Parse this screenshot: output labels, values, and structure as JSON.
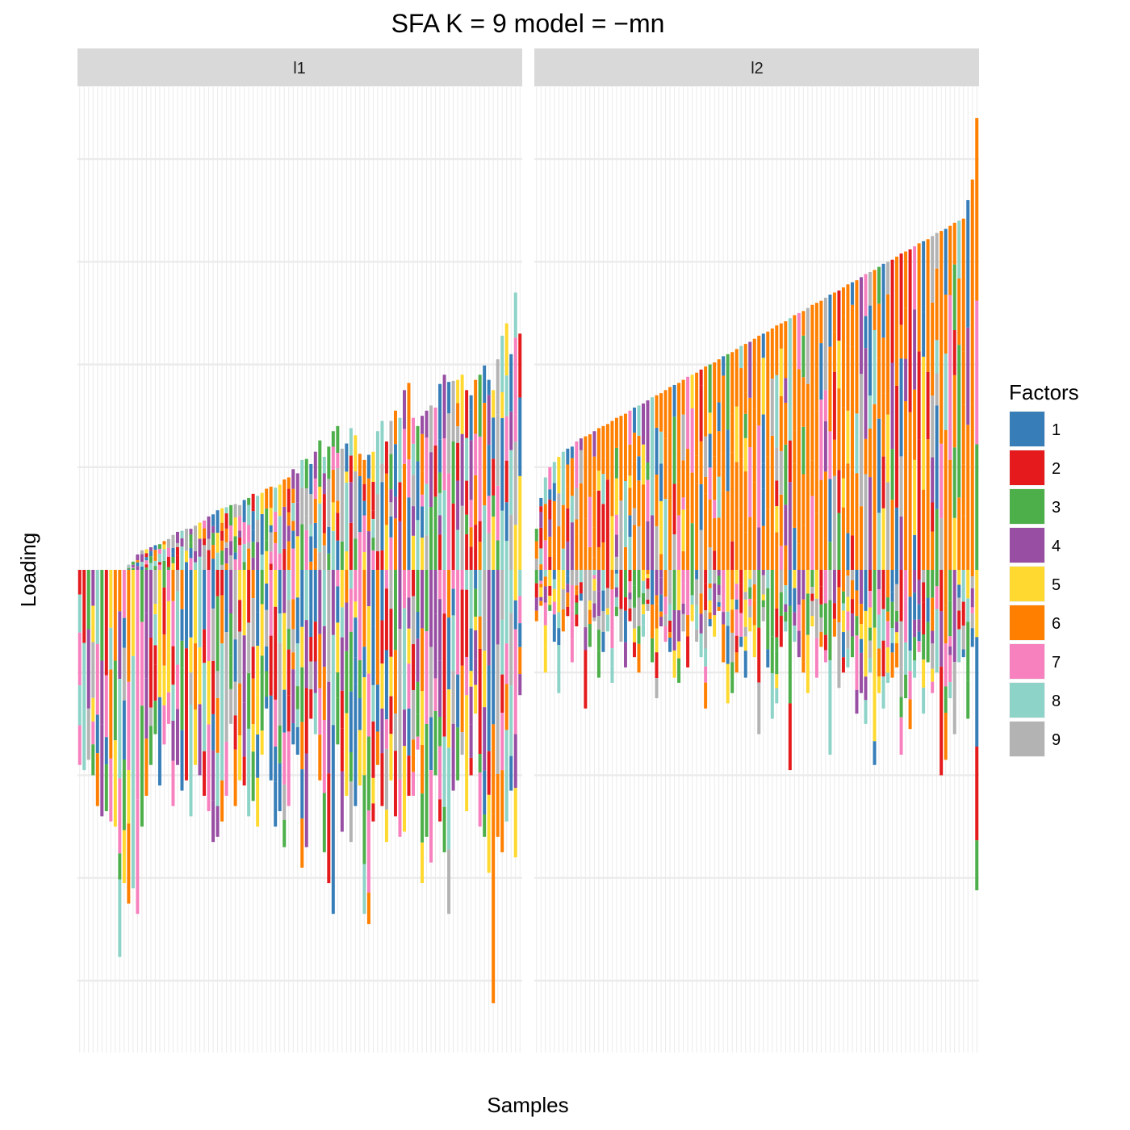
{
  "chart_data": {
    "type": "bar",
    "subtype": "stacked-diverging",
    "title": "SFA K = 9 model =  −mn",
    "xlabel": "Samples",
    "ylabel": "Loading",
    "ylim": [
      -4.7,
      4.7
    ],
    "grid": true,
    "y_gridlines": [
      -4,
      -3,
      -2,
      -1,
      1,
      2,
      3,
      4
    ],
    "tick_labels_shown": false,
    "legend": {
      "title": "Factors",
      "position": "right",
      "entries": [
        {
          "label": "1",
          "color": "#377EB8"
        },
        {
          "label": "2",
          "color": "#E41A1C"
        },
        {
          "label": "3",
          "color": "#4DAF4A"
        },
        {
          "label": "4",
          "color": "#984EA3"
        },
        {
          "label": "5",
          "color": "#FFD92F"
        },
        {
          "label": "6",
          "color": "#FF7F00"
        },
        {
          "label": "7",
          "color": "#F781BF"
        },
        {
          "label": "8",
          "color": "#8DD3C7"
        },
        {
          "label": "9",
          "color": "#B3B3B3"
        }
      ]
    },
    "panels": [
      {
        "name": "l1",
        "n_samples": 100,
        "positive_totals": [
          0.0,
          0.0,
          0.0,
          0.0,
          0.0,
          0.0,
          0.0,
          0.0,
          0.0,
          0.0,
          0.0,
          0.05,
          0.08,
          0.15,
          0.19,
          0.2,
          0.22,
          0.24,
          0.25,
          0.28,
          0.3,
          0.34,
          0.37,
          0.38,
          0.4,
          0.4,
          0.43,
          0.46,
          0.48,
          0.52,
          0.54,
          0.58,
          0.6,
          0.61,
          0.63,
          0.64,
          0.63,
          0.68,
          0.7,
          0.74,
          0.72,
          0.75,
          0.79,
          0.81,
          0.8,
          0.83,
          0.88,
          0.9,
          0.98,
          0.94,
          1.07,
          1.08,
          1.03,
          1.15,
          1.26,
          1.1,
          1.2,
          1.35,
          1.4,
          1.18,
          1.23,
          1.38,
          1.31,
          1.13,
          1.07,
          1.12,
          1.15,
          1.35,
          1.45,
          1.25,
          1.45,
          1.55,
          1.48,
          1.75,
          1.82,
          1.48,
          1.4,
          1.5,
          1.55,
          1.6,
          1.58,
          1.81,
          1.9,
          1.83,
          1.84,
          1.85,
          1.9,
          1.75,
          1.7,
          1.85,
          1.9,
          1.99,
          1.85,
          1.75,
          2.05,
          2.28,
          2.4,
          2.1,
          2.7,
          2.3
        ],
        "negative_totals": [
          -1.9,
          -1.95,
          -1.85,
          -2.0,
          -2.3,
          -2.4,
          -2.35,
          -2.45,
          -2.5,
          -3.77,
          -3.05,
          -3.25,
          -3.1,
          -3.35,
          -2.5,
          -2.2,
          -1.9,
          -1.6,
          -2.1,
          -1.7,
          -1.5,
          -2.3,
          -1.9,
          -2.15,
          -2.05,
          -2.4,
          -1.9,
          -2.0,
          -2.2,
          -2.35,
          -2.65,
          -2.6,
          -2.45,
          -2.2,
          -1.5,
          -2.3,
          -2.05,
          -2.1,
          -2.4,
          -2.25,
          -2.5,
          -1.8,
          -1.35,
          -2.05,
          -2.5,
          -2.35,
          -2.7,
          -2.3,
          -1.7,
          -1.8,
          -2.9,
          -2.7,
          -1.45,
          -1.6,
          -2.05,
          -2.75,
          -3.05,
          -3.35,
          -1.7,
          -2.55,
          -2.2,
          -2.65,
          -2.3,
          -2.1,
          -3.35,
          -3.45,
          -2.45,
          -1.9,
          -2.3,
          -2.65,
          -2.05,
          -2.4,
          -2.6,
          -2.55,
          -2.2,
          -2.2,
          -1.75,
          -3.05,
          -2.6,
          -2.85,
          -2.0,
          -2.45,
          -2.75,
          -3.35,
          -2.15,
          -2.05,
          -1.8,
          -2.35,
          -2.0,
          -1.4,
          -2.5,
          -2.6,
          -2.95,
          -4.22,
          -2.6,
          -2.75,
          -2.45,
          -2.15,
          -2.8,
          -1.22
        ]
      },
      {
        "name": "l2",
        "n_samples": 100,
        "positive_totals": [
          0.4,
          0.7,
          0.9,
          1.0,
          1.05,
          1.1,
          1.15,
          1.18,
          1.2,
          1.25,
          1.28,
          1.3,
          1.32,
          1.35,
          1.38,
          1.4,
          1.42,
          1.45,
          1.48,
          1.5,
          1.52,
          1.55,
          1.58,
          1.6,
          1.62,
          1.65,
          1.68,
          1.7,
          1.72,
          1.75,
          1.78,
          1.8,
          1.82,
          1.85,
          1.88,
          1.9,
          1.92,
          1.95,
          1.98,
          2.0,
          2.02,
          2.05,
          2.08,
          2.1,
          2.12,
          2.15,
          2.18,
          2.2,
          2.22,
          2.25,
          2.28,
          2.3,
          2.32,
          2.35,
          2.38,
          2.4,
          2.42,
          2.45,
          2.48,
          2.5,
          2.52,
          2.55,
          2.58,
          2.6,
          2.62,
          2.65,
          2.68,
          2.7,
          2.72,
          2.75,
          2.78,
          2.8,
          2.82,
          2.85,
          2.88,
          2.9,
          2.92,
          2.95,
          2.98,
          3.0,
          3.02,
          3.05,
          3.08,
          3.1,
          3.12,
          3.15,
          3.18,
          3.2,
          3.22,
          3.25,
          3.28,
          3.3,
          3.32,
          3.35,
          3.38,
          3.4,
          3.42,
          3.6,
          3.8,
          4.4
        ],
        "negative_totals": [
          -0.5,
          -0.35,
          -1.0,
          -0.4,
          -0.7,
          -1.2,
          -0.6,
          -0.45,
          -0.9,
          -0.55,
          -0.3,
          -1.35,
          -0.75,
          -0.5,
          -1.05,
          -0.8,
          -0.6,
          -1.1,
          -0.45,
          -0.7,
          -0.95,
          -0.5,
          -0.85,
          -1.0,
          -0.65,
          -0.4,
          -0.9,
          -1.25,
          -0.55,
          -0.7,
          -0.8,
          -1.05,
          -1.1,
          -0.6,
          -0.95,
          -0.5,
          -0.7,
          -0.85,
          -1.35,
          -0.55,
          -0.65,
          -0.4,
          -0.9,
          -1.3,
          -1.2,
          -1.0,
          -0.75,
          -1.05,
          -0.6,
          -0.85,
          -1.6,
          -0.5,
          -0.95,
          -1.45,
          -1.3,
          -0.75,
          -0.6,
          -1.95,
          -0.7,
          -0.85,
          -1.0,
          -1.2,
          -0.55,
          -1.05,
          -0.75,
          -0.9,
          -1.8,
          -0.65,
          -1.15,
          -1.0,
          -0.95,
          -0.85,
          -1.4,
          -1.2,
          -1.5,
          -1.0,
          -1.9,
          -1.2,
          -1.35,
          -1.1,
          -1.05,
          -0.95,
          -1.8,
          -1.25,
          -1.55,
          -1.05,
          -0.8,
          -1.4,
          -0.9,
          -1.2,
          -1.0,
          -2.0,
          -1.85,
          -1.25,
          -1.6,
          -0.9,
          -0.85,
          -1.45,
          -0.75,
          -3.12
        ]
      }
    ]
  },
  "strips": {
    "left": "l1",
    "right": "l2"
  }
}
